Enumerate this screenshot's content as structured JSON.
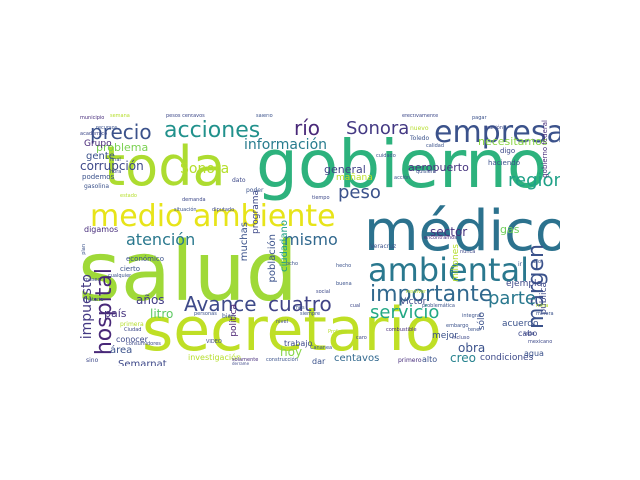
{
  "words": [
    {
      "key": "salud",
      "text": "salud",
      "color": "#9fd938"
    },
    {
      "key": "secretario",
      "text": "secretario",
      "color": "#bfdf25"
    },
    {
      "key": "gobierno",
      "text": "gobierno",
      "color": "#2db27d"
    },
    {
      "key": "toda",
      "text": "toda",
      "color": "#addc30"
    },
    {
      "key": "medico",
      "text": "médico",
      "color": "#2c728e"
    },
    {
      "key": "medio_ambiente",
      "text": "medio ambiente",
      "color": "#e7e419"
    },
    {
      "key": "ambiental",
      "text": "ambiental",
      "color": "#2a788e"
    },
    {
      "key": "empresa",
      "text": "empresa",
      "color": "#3b528b"
    },
    {
      "key": "acciones",
      "text": "acciones",
      "color": "#21918c"
    },
    {
      "key": "precio",
      "text": "precio",
      "color": "#3b528b"
    },
    {
      "key": "rio",
      "text": "río",
      "color": "#482878"
    },
    {
      "key": "sonora_top",
      "text": "Sonora",
      "color": "#443983"
    },
    {
      "key": "importante",
      "text": "importante",
      "color": "#31688e"
    },
    {
      "key": "hospital",
      "text": "hospital",
      "color": "#482878"
    },
    {
      "key": "avance",
      "text": "Avance",
      "color": "#3e4a89"
    },
    {
      "key": "cuatro",
      "text": "cuatro",
      "color": "#414487"
    },
    {
      "key": "margen",
      "text": "margen",
      "color": "#3b528b"
    },
    {
      "key": "parte",
      "text": "parte",
      "color": "#2a788e"
    },
    {
      "key": "servicio",
      "text": "servicio",
      "color": "#22a884"
    },
    {
      "key": "region",
      "text": "región",
      "color": "#1fa187"
    },
    {
      "key": "peso",
      "text": "peso",
      "color": "#3b528b"
    },
    {
      "key": "mismo",
      "text": "mismo",
      "color": "#31688e"
    },
    {
      "key": "atencion",
      "text": "atención",
      "color": "#2a788e"
    },
    {
      "key": "informacion",
      "text": "información",
      "color": "#287c8e"
    },
    {
      "key": "corrupcion",
      "text": "corrupción",
      "color": "#3e4989"
    },
    {
      "key": "problema",
      "text": "problema",
      "color": "#7ad151"
    },
    {
      "key": "sonora_mid",
      "text": "Sonora",
      "color": "#b5de2b"
    },
    {
      "key": "impuesto",
      "text": "impuesto",
      "color": "#443983"
    },
    {
      "key": "anos",
      "text": "años",
      "color": "#433e85"
    },
    {
      "key": "litro",
      "text": "litro",
      "color": "#5ec962"
    },
    {
      "key": "pais",
      "text": "país",
      "color": "#46337e"
    },
    {
      "key": "hoy",
      "text": "hoy",
      "color": "#86d549"
    },
    {
      "key": "centavos",
      "text": "centavos",
      "color": "#31688e"
    },
    {
      "key": "creo",
      "text": "creo",
      "color": "#26828e"
    },
    {
      "key": "condiciones",
      "text": "condiciones",
      "color": "#3e4a89"
    },
    {
      "key": "obra",
      "text": "obra",
      "color": "#3b528b"
    },
    {
      "key": "sector",
      "text": "sector",
      "color": "#46327e"
    },
    {
      "key": "necesitamos",
      "text": "necesitamos",
      "color": "#8bd646"
    },
    {
      "key": "general",
      "text": "general",
      "color": "#414487"
    },
    {
      "key": "aeropuerto",
      "text": "aeropuerto",
      "color": "#46337e"
    },
    {
      "key": "manana",
      "text": "mañana",
      "color": "#bddf26"
    },
    {
      "key": "gas",
      "text": "gas",
      "color": "#6ece58"
    },
    {
      "key": "gente",
      "text": "gente",
      "color": "#3b528b"
    },
    {
      "key": "grupo",
      "text": "Grupo",
      "color": "#482878"
    },
    {
      "key": "area",
      "text": "área",
      "color": "#3b528b"
    },
    {
      "key": "semarnat",
      "text": "Semarnat",
      "color": "#3e4989"
    },
    {
      "key": "muchas",
      "text": "muchas",
      "color": "#3b528b"
    },
    {
      "key": "poblacion",
      "text": "población",
      "color": "#3b528b"
    },
    {
      "key": "ciudadano",
      "text": "ciudadano",
      "color": "#1fa187"
    },
    {
      "key": "programa",
      "text": "programa",
      "color": "#3e4989"
    },
    {
      "key": "politica",
      "text": "política",
      "color": "#481f70"
    },
    {
      "key": "mejor",
      "text": "mejor",
      "color": "#3b528b"
    },
    {
      "key": "ejemplo",
      "text": "ejemplo",
      "color": "#3e4a89"
    },
    {
      "key": "acuerdo",
      "text": "acuerdo",
      "color": "#3b528b"
    },
    {
      "key": "victor",
      "text": "Víctor",
      "color": "#3e4a89"
    },
    {
      "key": "solo",
      "text": "sólo",
      "color": "#3b528b"
    },
    {
      "key": "millones",
      "text": "millones",
      "color": "#b5de2b"
    },
    {
      "key": "publica",
      "text": "pública",
      "color": "#3e4a89"
    },
    {
      "key": "cabo",
      "text": "cabo",
      "color": "#3e4989"
    },
    {
      "key": "agua",
      "text": "agua",
      "color": "#3b528b"
    },
    {
      "key": "alto",
      "text": "alto",
      "color": "#3b528b"
    },
    {
      "key": "primero",
      "text": "primero",
      "color": "#472d7b"
    },
    {
      "key": "dar",
      "text": "dar",
      "color": "#3b528b"
    },
    {
      "key": "trabajo",
      "text": "trabajo",
      "color": "#3e4989"
    },
    {
      "key": "investigacion",
      "text": "investigación",
      "color": "#b5de2b"
    },
    {
      "key": "conocer",
      "text": "conocer",
      "color": "#3e4989"
    },
    {
      "key": "economico",
      "text": "económico",
      "color": "#3b528b"
    },
    {
      "key": "cierto",
      "text": "cierto",
      "color": "#3b528b"
    },
    {
      "key": "digamos",
      "text": "digamos",
      "color": "#472d7b"
    },
    {
      "key": "podemos",
      "text": "podemos",
      "color": "#3b528b"
    },
    {
      "key": "gasolina",
      "text": "gasolina",
      "color": "#3b528b"
    },
    {
      "key": "academico",
      "text": "académico",
      "color": "#3e4989"
    },
    {
      "key": "recursos",
      "text": "recursos",
      "color": "#3b528b"
    },
    {
      "key": "municipio",
      "text": "municipio",
      "color": "#472d7b"
    },
    {
      "key": "semana",
      "text": "semana",
      "color": "#b5de2b"
    },
    {
      "key": "pesos_centavos",
      "text": "pesos centavos",
      "color": "#3e4989"
    },
    {
      "key": "salerio",
      "text": "salerio",
      "color": "#3b528b"
    },
    {
      "key": "solamente",
      "text": "solamente",
      "color": "#472d7b"
    },
    {
      "key": "efectivamente",
      "text": "efectivamente",
      "color": "#3e4989"
    },
    {
      "key": "nuevo",
      "text": "nuevo",
      "color": "#b5de2b"
    },
    {
      "key": "toledo",
      "text": "Toledo",
      "color": "#3b528b"
    },
    {
      "key": "digo",
      "text": "digo",
      "color": "#3e4989"
    },
    {
      "key": "haciendo",
      "text": "haciendo",
      "color": "#3b528b"
    },
    {
      "key": "gobierno_federal",
      "text": "gobierno federal",
      "color": "#472d7b"
    },
    {
      "key": "veracruz",
      "text": "Veracruz",
      "color": "#3b528b"
    },
    {
      "key": "encontramos",
      "text": "encontramos",
      "color": "#472d7b"
    },
    {
      "key": "dato",
      "text": "dato",
      "color": "#3e4989"
    },
    {
      "key": "poder",
      "text": "poder",
      "color": "#3b528b"
    },
    {
      "key": "demanda",
      "text": "demanda",
      "color": "#3e4989"
    },
    {
      "key": "construccion",
      "text": "construcción",
      "color": "#3b528b"
    },
    {
      "key": "combustible",
      "text": "combustible",
      "color": "#472d7b"
    },
    {
      "key": "embargo",
      "text": "embargo",
      "color": "#3b528b"
    },
    {
      "key": "mexicano",
      "text": "mexicano",
      "color": "#3e4989"
    },
    {
      "key": "integral",
      "text": "integral",
      "color": "#3b528b"
    },
    {
      "key": "nunca",
      "text": "nunca",
      "color": "#3e4989"
    },
    {
      "key": "resolver",
      "text": "resolver",
      "color": "#b5de2b"
    },
    {
      "key": "problematica",
      "text": "problemática",
      "color": "#3b528b"
    },
    {
      "key": "sino",
      "text": "sino",
      "color": "#3e4989"
    },
    {
      "key": "primera",
      "text": "primera",
      "color": "#b5de2b"
    },
    {
      "key": "plan",
      "text": "plan",
      "color": "#3b528b"
    },
    {
      "key": "meses",
      "text": "meses",
      "color": "#3e4989"
    },
    {
      "key": "materia",
      "text": "materia",
      "color": "#3b528b"
    },
    {
      "key": "ciudad",
      "text": "Ciudad",
      "color": "#3e4989"
    },
    {
      "key": "personas",
      "text": "personas",
      "color": "#3b528b"
    },
    {
      "key": "bien",
      "text": "bien",
      "color": "#3b528b"
    },
    {
      "key": "video",
      "text": "VIDEO",
      "color": "#3e4989"
    },
    {
      "key": "hecho",
      "text": "hecho",
      "color": "#3b528b"
    },
    {
      "key": "ocho",
      "text": "ocho",
      "color": "#3b528b"
    },
    {
      "key": "nivel",
      "text": "nivel",
      "color": "#3e4989"
    },
    {
      "key": "siempre",
      "text": "siempre",
      "color": "#3b528b"
    },
    {
      "key": "ir",
      "text": "ir",
      "color": "#3b528b"
    },
    {
      "key": "vida",
      "text": "vida",
      "color": "#3e4989"
    },
    {
      "key": "dijo",
      "text": "dijo",
      "color": "#3b528b"
    },
    {
      "key": "caro",
      "text": "caro",
      "color": "#3e4989"
    },
    {
      "key": "profepa",
      "text": "Profepa",
      "color": "#b5de2b"
    },
    {
      "key": "buena",
      "text": "buena",
      "color": "#3b528b"
    },
    {
      "key": "final",
      "text": "final",
      "color": "#3b528b"
    },
    {
      "key": "hora",
      "text": "hora",
      "color": "#3e4989"
    },
    {
      "key": "pagar",
      "text": "pagar",
      "color": "#3b528b"
    },
    {
      "key": "reunion",
      "text": "reunión",
      "color": "#3e4989"
    },
    {
      "key": "accion",
      "text": "acción",
      "color": "#3b528b"
    },
    {
      "key": "tiempo",
      "text": "tiempo",
      "color": "#3e4989"
    },
    {
      "key": "cuidado",
      "text": "cuidado",
      "color": "#3b528b"
    },
    {
      "key": "mina",
      "text": "mina",
      "color": "#b5de2b"
    },
    {
      "key": "minera",
      "text": "minera",
      "color": "#3b528b"
    },
    {
      "key": "incluso",
      "text": "incluso",
      "color": "#3e4989"
    },
    {
      "key": "calidad",
      "text": "calidad",
      "color": "#3b528b"
    },
    {
      "key": "consumidores",
      "text": "consumidores",
      "color": "#3e4989"
    },
    {
      "key": "cananea",
      "text": "Cananea",
      "color": "#3b528b"
    },
    {
      "key": "derrame",
      "text": "derrame",
      "color": "#3e4989"
    },
    {
      "key": "situacion",
      "text": "situación",
      "color": "#3b528b"
    },
    {
      "key": "diputado",
      "text": "diputado",
      "color": "#3e4989"
    },
    {
      "key": "mes",
      "text": "mes",
      "color": "#3b528b"
    },
    {
      "key": "cual",
      "text": "cual",
      "color": "#3e4989"
    },
    {
      "key": "cualquier",
      "text": "cualquier",
      "color": "#3b528b"
    },
    {
      "key": "social",
      "text": "social",
      "color": "#3e4989"
    },
    {
      "key": "quisiera",
      "text": "quisiera",
      "color": "#3b528b"
    },
    {
      "key": "estado",
      "text": "estado",
      "color": "#b5de2b"
    },
    {
      "key": "tener",
      "text": "tener",
      "color": "#3b528b"
    }
  ]
}
